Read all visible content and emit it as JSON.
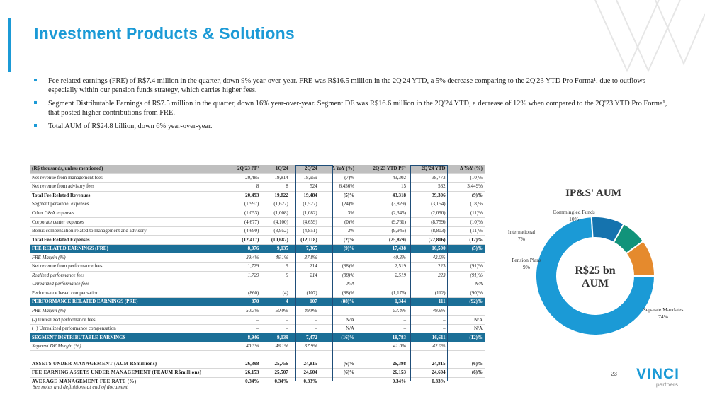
{
  "page": {
    "title": "Investment Products & Solutions",
    "page_number": "23",
    "footnote": "See notes and definitions at end of document",
    "brand_color": "#1b9ad6"
  },
  "bullets": [
    "Fee related earnings (FRE) of R$7.4 million in the quarter, down 9% year-over-year. FRE was R$16.5 million in the 2Q'24 YTD, a 5% decrease comparing to the 2Q'23 YTD Pro Forma¹, due to outflows especially within our pension funds strategy, which carries higher fees.",
    "Segment Distributable Earnings of R$7.5 million in the quarter, down 16% year-over-year. Segment DE was R$16.6 million in the 2Q'24 YTD, a decrease of 12% when compared to the 2Q'23 YTD Pro Forma¹, that posted higher contributions from FRE.",
    "Total AUM of R$24.8 billion, down 6% year-over-year."
  ],
  "table": {
    "headers": [
      "(R$ thousands, unless mentioned)",
      "2Q'23 PF¹",
      "1Q'24",
      "2Q'24",
      "Δ YoY (%)",
      "2Q'23 YTD PF¹",
      "2Q'24 YTD",
      "Δ YoY (%)"
    ],
    "rows": [
      {
        "style": "normal",
        "cells": [
          "Net revenue from management fees",
          "20,485",
          "19,814",
          "18,959",
          "(7)%",
          "43,302",
          "38,773",
          "(10)%"
        ]
      },
      {
        "style": "normal",
        "cells": [
          "Net revenue from advisory fees",
          "8",
          "8",
          "524",
          "6,456%",
          "15",
          "532",
          "3,449%"
        ]
      },
      {
        "style": "bold",
        "cells": [
          "Total Fee Related Revenues",
          "20,493",
          "19,822",
          "19,484",
          "(5)%",
          "43,318",
          "39,306",
          "(9)%"
        ]
      },
      {
        "style": "normal",
        "cells": [
          "Segment personnel expenses",
          "(1,997)",
          "(1,627)",
          "(1,527)",
          "(24)%",
          "(3,829)",
          "(3,154)",
          "(18)%"
        ]
      },
      {
        "style": "normal",
        "cells": [
          "Other G&A expenses",
          "(1,053)",
          "(1,008)",
          "(1,082)",
          "3%",
          "(2,345)",
          "(2,090)",
          "(11)%"
        ]
      },
      {
        "style": "normal",
        "cells": [
          "Corporate center expenses",
          "(4,677)",
          "(4,100)",
          "(4,659)",
          "(0)%",
          "(9,761)",
          "(8,759)",
          "(10)%"
        ]
      },
      {
        "style": "normal",
        "cells": [
          "Bonus compensation related to management and advisory",
          "(4,690)",
          "(3,952)",
          "(4,851)",
          "3%",
          "(9,945)",
          "(8,803)",
          "(11)%"
        ]
      },
      {
        "style": "bold",
        "cells": [
          "Total Fee Related Expenses",
          "(12,417)",
          "(10,687)",
          "(12,118)",
          "(2)%",
          "(25,879)",
          "(22,806)",
          "(12)%"
        ]
      },
      {
        "style": "band",
        "cells": [
          "FEE RELATED EARNINGS (FRE)",
          "8,076",
          "9,135",
          "7,365",
          "(9)%",
          "17,438",
          "16,500",
          "(5)%"
        ]
      },
      {
        "style": "ital",
        "cells": [
          "FRE Margin (%)",
          "39.4%",
          "46.1%",
          "37.8%",
          "",
          "40.3%",
          "42.0%",
          ""
        ]
      },
      {
        "style": "normal",
        "cells": [
          "Net revenue from performance fees",
          "1,729",
          "9",
          "214",
          "(88)%",
          "2,519",
          "223",
          "(91)%"
        ]
      },
      {
        "style": "ital",
        "cells": [
          "Realized performance fees",
          "1,729",
          "9",
          "214",
          "(88)%",
          "2,519",
          "223",
          "(91)%"
        ]
      },
      {
        "style": "ital",
        "cells": [
          "Unrealized performance fees",
          "–",
          "–",
          "–",
          "N/A",
          "–",
          "–",
          "N/A"
        ]
      },
      {
        "style": "normal",
        "cells": [
          "Performance based compensation",
          "(860)",
          "(4)",
          "(107)",
          "(88)%",
          "(1,176)",
          "(112)",
          "(90)%"
        ]
      },
      {
        "style": "band",
        "cells": [
          "PERFORMANCE RELATED EARNINGS (PRE)",
          "870",
          "4",
          "107",
          "(88)%",
          "1,344",
          "111",
          "(92)%"
        ]
      },
      {
        "style": "ital",
        "cells": [
          "PRE Margin (%)",
          "50.3%",
          "50.0%",
          "49.9%",
          "",
          "53.4%",
          "49.9%",
          ""
        ]
      },
      {
        "style": "normal",
        "cells": [
          "(-) Unrealized performance fees",
          "–",
          "–",
          "–",
          "N/A",
          "–",
          "–",
          "N/A"
        ]
      },
      {
        "style": "normal",
        "cells": [
          "(+) Unrealized performance compensation",
          "–",
          "–",
          "–",
          "N/A",
          "–",
          "–",
          "N/A"
        ]
      },
      {
        "style": "band",
        "cells": [
          "SEGMENT DISTRIBUTABLE EARNINGS",
          "8,946",
          "9,139",
          "7,472",
          "(16)%",
          "18,783",
          "16,611",
          "(12)%"
        ]
      },
      {
        "style": "ital",
        "cells": [
          "Segment DE Margin (%)",
          "40.3%",
          "46.1%",
          "37.9%",
          "",
          "41.0%",
          "42.0%",
          ""
        ]
      },
      {
        "style": "blank",
        "cells": [
          "",
          "",
          "",
          "",
          "",
          "",
          "",
          ""
        ]
      },
      {
        "style": "aum",
        "cells": [
          "ASSETS UNDER MANAGEMENT (AUM R$millions)",
          "26,398",
          "25,756",
          "24,815",
          "(6)%",
          "26,398",
          "24,815",
          "(6)%"
        ]
      },
      {
        "style": "aum",
        "cells": [
          "FEE EARNING ASSETS UNDER MANAGEMENT (FEAUM R$millions)",
          "26,153",
          "25,507",
          "24,604",
          "(6)%",
          "26,153",
          "24,604",
          "(6)%"
        ]
      },
      {
        "style": "aum",
        "cells": [
          "AVERAGE MANAGEMENT FEE RATE (%)",
          "0.34%",
          "0.34%",
          "0.33%",
          "",
          "0.34%",
          "0.33%",
          ""
        ]
      }
    ]
  },
  "chart_data": {
    "type": "pie",
    "title": "IP&S' AUM",
    "center_label": "R$25 bn AUM",
    "center_lines": [
      "R$25 bn",
      "AUM"
    ],
    "slices": [
      {
        "name": "Separate Mandates",
        "value": 74,
        "label": "74%",
        "color": "#1b9ad6"
      },
      {
        "name": "Pension Plans",
        "value": 9,
        "label": "9%",
        "color": "#1573ae"
      },
      {
        "name": "International",
        "value": 7,
        "label": "7%",
        "color": "#11937a"
      },
      {
        "name": "Commingled Funds",
        "value": 10,
        "label": "10%",
        "color": "#e58a2d"
      }
    ]
  },
  "logo": {
    "word": "VINCI",
    "sub": "partners"
  }
}
